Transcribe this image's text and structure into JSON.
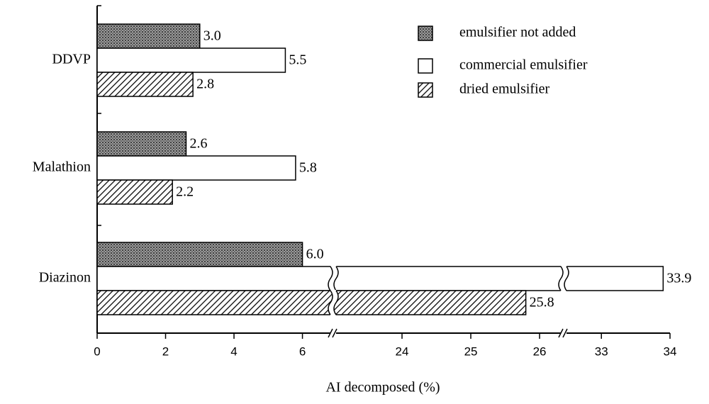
{
  "chart_data": {
    "type": "hbar",
    "xlabel": "AI   decomposed (%)",
    "categories": [
      "DDVP",
      "Malathion",
      "Diazinon"
    ],
    "series": [
      {
        "name": "emulsifier not added",
        "color": "#6e6e6e",
        "pattern": "stipple",
        "values": [
          3.0,
          2.6,
          6.0
        ],
        "value_labels": [
          "3.0",
          "2.6",
          "6.0"
        ]
      },
      {
        "name": "commercial emulsifier",
        "color": "#ffffff",
        "pattern": "solid",
        "values": [
          5.5,
          5.8,
          33.9
        ],
        "value_labels": [
          "5.5",
          "5.8",
          "33.9"
        ]
      },
      {
        "name": "dried emulsifier",
        "color": "#000000",
        "pattern": "hatch",
        "values": [
          2.8,
          2.2,
          25.8
        ],
        "value_labels": [
          "2.8",
          "2.2",
          "25.8"
        ]
      }
    ],
    "xsegments": [
      {
        "xlim": [
          0,
          6.9
        ],
        "xticks": [
          0,
          2,
          4,
          6
        ]
      },
      {
        "xlim": [
          23.0,
          26.35
        ],
        "xticks": [
          24,
          25,
          26
        ]
      },
      {
        "xlim": [
          32.45,
          34.0
        ],
        "xticks": [
          33,
          34
        ]
      }
    ],
    "legend": "upper right"
  }
}
